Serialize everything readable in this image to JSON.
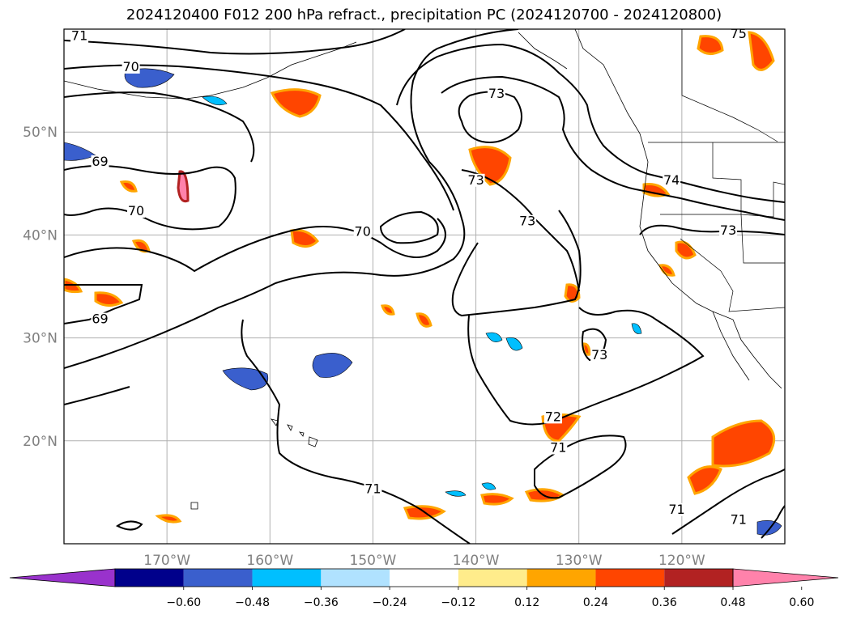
{
  "title": "2024120400 F012 200 hPa refract., precipitation PC (2024120700 - 2024120800)",
  "map": {
    "lon_range": [
      -180,
      -110
    ],
    "lat_range": [
      10,
      60
    ],
    "lat_ticks": [
      {
        "v": 20,
        "t": "20°N"
      },
      {
        "v": 30,
        "t": "30°N"
      },
      {
        "v": 40,
        "t": "40°N"
      },
      {
        "v": 50,
        "t": "50°N"
      }
    ],
    "lon_ticks": [
      {
        "v": -170,
        "t": "170°W"
      },
      {
        "v": -160,
        "t": "160°W"
      },
      {
        "v": -150,
        "t": "150°W"
      },
      {
        "v": -140,
        "t": "140°W"
      },
      {
        "v": -130,
        "t": "130°W"
      },
      {
        "v": -120,
        "t": "120°W"
      }
    ],
    "grid": true,
    "contour_labels": [
      {
        "t": "71",
        "lon": -178.5,
        "lat": 59.0
      },
      {
        "t": "70",
        "lon": -173.5,
        "lat": 56.0
      },
      {
        "t": "69",
        "lon": -176.5,
        "lat": 46.8
      },
      {
        "t": "70",
        "lon": -173.0,
        "lat": 42.0
      },
      {
        "t": "69",
        "lon": -176.5,
        "lat": 31.5
      },
      {
        "t": "73",
        "lon": -138.0,
        "lat": 53.4
      },
      {
        "t": "73",
        "lon": -140.0,
        "lat": 45.0
      },
      {
        "t": "73",
        "lon": -135.0,
        "lat": 41.0
      },
      {
        "t": "70",
        "lon": -151.0,
        "lat": 40.0
      },
      {
        "t": "74",
        "lon": -121.0,
        "lat": 45.0
      },
      {
        "t": "73",
        "lon": -115.5,
        "lat": 40.1
      },
      {
        "t": "73",
        "lon": -128.0,
        "lat": 28.0
      },
      {
        "t": "72",
        "lon": -132.5,
        "lat": 22.0
      },
      {
        "t": "71",
        "lon": -132.0,
        "lat": 19.0
      },
      {
        "t": "71",
        "lon": -150.0,
        "lat": 15.0
      },
      {
        "t": "71",
        "lon": -120.5,
        "lat": 13.0
      },
      {
        "t": "71",
        "lon": -114.5,
        "lat": 12.0
      },
      {
        "t": "75",
        "lon": -114.5,
        "lat": 59.2
      }
    ]
  },
  "colorbar": {
    "labels": [
      "−0.60",
      "−0.48",
      "−0.36",
      "−0.24",
      "−0.12",
      "0.12",
      "0.24",
      "0.36",
      "0.48",
      "0.60"
    ],
    "colors": [
      "#9932cc",
      "#00008b",
      "#3a5fcd",
      "#00bfff",
      "#b0e2ff",
      "#ffffff",
      "#ffec8b",
      "#ffa500",
      "#ff4500",
      "#b22222",
      "#ff82ab"
    ]
  }
}
